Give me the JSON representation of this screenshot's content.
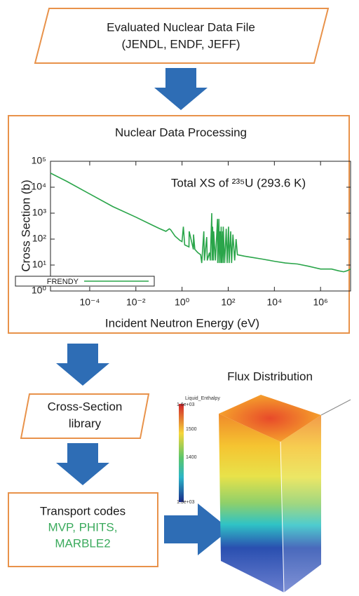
{
  "boxes": {
    "source": {
      "lines": [
        "Evaluated Nuclear Data File",
        "(JENDL, ENDF, JEFF)"
      ]
    },
    "processing": {
      "title": "Nuclear Data Processing"
    },
    "library": {
      "lines": [
        "Cross-Section",
        "library"
      ]
    },
    "transport": {
      "lines": [
        "Transport codes",
        "MVP, PHITS,",
        "MARBLE2"
      ]
    },
    "flux": {
      "title": "Flux Distribution",
      "colorbar": {
        "title": "Liquid_Enthalpy",
        "labels": [
          "1.6e+03",
          "1500",
          "1400",
          "1.3e+03"
        ]
      }
    }
  },
  "chart_data": {
    "type": "line",
    "title": "Total XS of ²³⁵U (293.6 K)",
    "xlabel": "Incident Neutron Energy (eV)",
    "ylabel": "Cross Section (b)",
    "xscale": "log",
    "yscale": "log",
    "xlim": [
      2e-06,
      20000000
    ],
    "ylim": [
      1,
      100000
    ],
    "xticks": [
      {
        "value": 0.0001,
        "label": "10⁻⁴"
      },
      {
        "value": 0.01,
        "label": "10⁻²"
      },
      {
        "value": 1,
        "label": "10⁰"
      },
      {
        "value": 100,
        "label": "10²"
      },
      {
        "value": 10000,
        "label": "10⁴"
      },
      {
        "value": 1000000,
        "label": "10⁶"
      }
    ],
    "yticks": [
      {
        "value": 1,
        "label": "10⁰"
      },
      {
        "value": 10,
        "label": "10¹"
      },
      {
        "value": 100,
        "label": "10²"
      },
      {
        "value": 1000,
        "label": "10³"
      },
      {
        "value": 10000,
        "label": "10⁴"
      },
      {
        "value": 100000,
        "label": "10⁵"
      }
    ],
    "legend": "lower left",
    "series": [
      {
        "name": "FRENDY",
        "color": "#2aa54a",
        "x": [
          2e-06,
          1e-05,
          0.0001,
          0.001,
          0.01,
          0.05,
          0.1,
          0.2,
          0.28,
          0.32,
          0.5,
          0.8,
          1.0,
          1.14,
          1.3,
          2.0,
          2.04,
          3.1,
          3.15,
          3.6,
          4.8,
          6.4,
          7.1,
          8.8,
          9.3,
          11.7,
          12.4,
          15.4,
          16.7,
          19.3,
          20,
          21.1,
          22.9,
          23.6,
          27.8,
          34.4,
          35.2,
          39.4,
          41,
          44.5,
          48,
          49.5,
          52,
          56.8,
          60,
          61,
          70,
          82,
          90,
          103,
          110,
          128,
          140,
          160,
          190,
          220,
          250,
          500,
          1000,
          3000,
          10000,
          30000,
          100000,
          300000,
          1000000,
          3000000,
          6000000,
          10000000,
          14000000,
          20000000
        ],
        "values": [
          35000,
          17000,
          5500,
          1800,
          700,
          350,
          260,
          200,
          250,
          230,
          130,
          90,
          80,
          300,
          60,
          50,
          200,
          40,
          150,
          40,
          30,
          25,
          12,
          200,
          15,
          120,
          15,
          30,
          15,
          1000,
          15,
          300,
          15,
          200,
          15,
          600,
          12,
          600,
          12,
          200,
          12,
          300,
          12,
          200,
          12,
          300,
          12,
          250,
          12,
          300,
          12,
          200,
          12,
          150,
          15,
          100,
          25,
          22,
          20,
          17,
          14,
          12,
          11,
          9,
          7,
          7,
          6,
          5.5,
          6,
          7
        ]
      }
    ]
  }
}
